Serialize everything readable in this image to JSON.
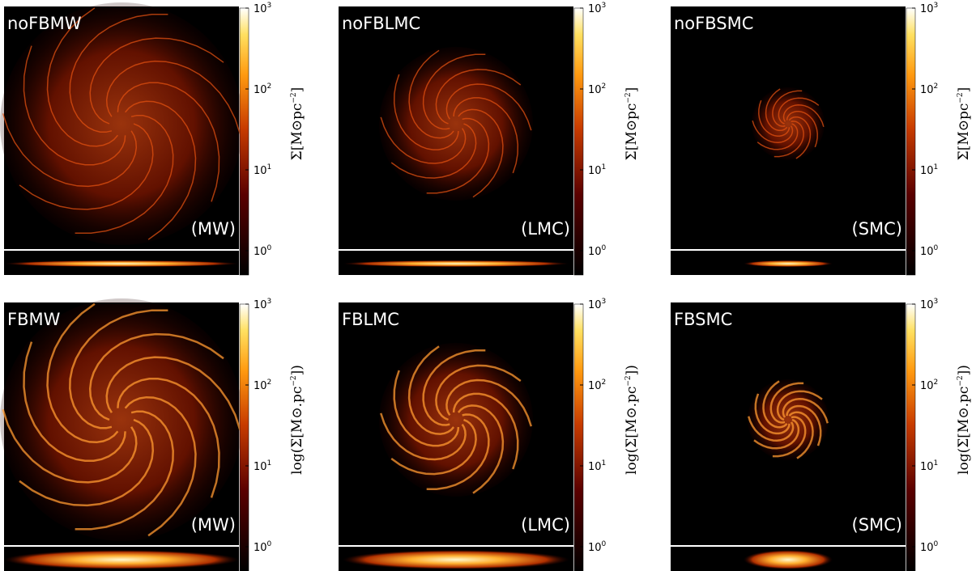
{
  "panels": [
    {
      "title": "noFBMW",
      "tag": "(MW)",
      "cbar_label": {
        "main": "Σ[M⊙pc",
        "sup": "−2",
        "end": "]"
      }
    },
    {
      "title": "noFBLMC",
      "tag": "(LMC)",
      "cbar_label": {
        "main": "Σ[M⊙pc",
        "sup": "−2",
        "end": "]"
      }
    },
    {
      "title": "noFBSMC",
      "tag": "(SMC)",
      "cbar_label": {
        "main": "Σ[M⊙pc",
        "sup": "−2",
        "end": "]"
      }
    },
    {
      "title": "FBMW",
      "tag": "(MW)",
      "cbar_label": {
        "main": "log(Σ[M⊙.pc",
        "sup": "−2",
        "end": "])"
      }
    },
    {
      "title": "FBLMC",
      "tag": "(LMC)",
      "cbar_label": {
        "main": "log(Σ[M⊙.pc",
        "sup": "−2",
        "end": "])"
      }
    },
    {
      "title": "FBSMC",
      "tag": "(SMC)",
      "cbar_label": {
        "main": "log(Σ[M⊙.pc",
        "sup": "−2",
        "end": "])"
      }
    }
  ],
  "cbar_ticks": [
    {
      "base": "10",
      "exp": "3"
    },
    {
      "base": "10",
      "exp": "2"
    },
    {
      "base": "10",
      "exp": "1"
    },
    {
      "base": "10",
      "exp": "0"
    }
  ]
}
